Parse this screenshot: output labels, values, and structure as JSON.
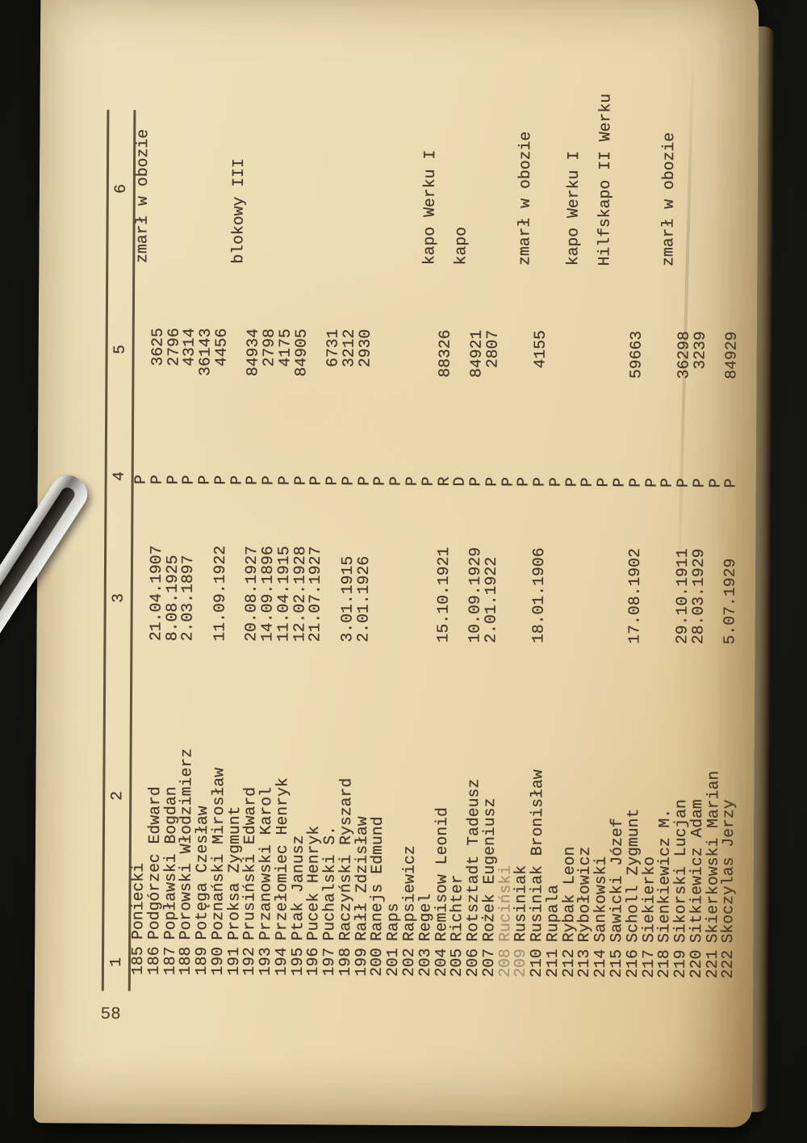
{
  "page": {
    "number": "58",
    "column_headers": [
      "1",
      "2",
      "3",
      "4",
      "5",
      "6"
    ]
  },
  "colors": {
    "paper": "#ecdab2",
    "ink": "#46392a",
    "background": "#171714",
    "page_edge": "#d9c393",
    "clip_metal": "#c9c9c5"
  },
  "records": [
    {
      "nr": "185",
      "name": "Poniecki",
      "birthdate": "",
      "nat": "P",
      "camp_number": "",
      "remark": "zmarł w obozie"
    },
    {
      "nr": "186",
      "name": "Podgórzec Edward",
      "birthdate": "21.04.1907",
      "nat": "P",
      "camp_number": "3625",
      "remark": ""
    },
    {
      "nr": "187",
      "name": "Popławski Bogdan",
      "birthdate": "8.08.1925",
      "nat": "P",
      "camp_number": "2796",
      "remark": ""
    },
    {
      "nr": "188",
      "name": "Porowski Włodzimierz",
      "birthdate": "2.03.1897",
      "nat": "P",
      "camp_number": "4314",
      "remark": ""
    },
    {
      "nr": "189",
      "name": "Potęga Czesław",
      "birthdate": "",
      "nat": "P",
      "camp_number": "36143",
      "remark": ""
    },
    {
      "nr": "190",
      "name": "Poznański Mirosław",
      "birthdate": "11.09.1922",
      "nat": "P",
      "camp_number": "4456",
      "remark": ""
    },
    {
      "nr": "191",
      "name": "Proksa Zygmunt",
      "birthdate": "",
      "nat": "P",
      "camp_number": "",
      "remark": "blokowy III"
    },
    {
      "nr": "192",
      "name": "Prusiński Edward",
      "birthdate": "20.08.1927",
      "nat": "P",
      "camp_number": "84934",
      "remark": ""
    },
    {
      "nr": "193",
      "name": "Przanowski Karol",
      "birthdate": "14.09.1896",
      "nat": "P",
      "camp_number": "2798",
      "remark": ""
    },
    {
      "nr": "194",
      "name": "Przełomiec Henryk",
      "birthdate": "11.04.1915",
      "nat": "P",
      "camp_number": "4175",
      "remark": ""
    },
    {
      "nr": "195",
      "name": "Ptak Janusz",
      "birthdate": "12.02.1928",
      "nat": "P",
      "camp_number": "84905",
      "remark": ""
    },
    {
      "nr": "196",
      "name": "Pucek Henryk",
      "birthdate": "21.07.1927",
      "nat": "P",
      "camp_number": "",
      "remark": ""
    },
    {
      "nr": "197",
      "name": "Puchalski S.",
      "birthdate": "",
      "nat": "P",
      "camp_number": "6731",
      "remark": ""
    },
    {
      "nr": "198",
      "name": "Raczyński Ryszard",
      "birthdate": "3.01.1915",
      "nat": "P",
      "camp_number": "3212",
      "remark": ""
    },
    {
      "nr": "199",
      "name": "Rałł Zdzisław",
      "birthdate": "2.01.1926",
      "nat": "P",
      "camp_number": "2930",
      "remark": ""
    },
    {
      "nr": "200",
      "name": "Ranejs Edmund",
      "birthdate": "",
      "nat": "P",
      "camp_number": "",
      "remark": ""
    },
    {
      "nr": "201",
      "name": "Raps",
      "birthdate": "",
      "nat": "P",
      "camp_number": "",
      "remark": ""
    },
    {
      "nr": "202",
      "name": "Rapsiewicz",
      "birthdate": "",
      "nat": "P",
      "camp_number": "",
      "remark": ""
    },
    {
      "nr": "203",
      "name": "Regel",
      "birthdate": "",
      "nat": "P",
      "camp_number": "",
      "remark": "kapo Werku I"
    },
    {
      "nr": "204",
      "name": "Remisow Leonid",
      "birthdate": "15.10.1921",
      "nat": "R",
      "camp_number": "88326",
      "remark": ""
    },
    {
      "nr": "205",
      "name": "Richter",
      "birthdate": "",
      "nat": "D",
      "camp_number": "",
      "remark": "kapo"
    },
    {
      "nr": "206",
      "name": "Rotsztadt Tadeusz",
      "birthdate": "10.09.1929",
      "nat": "P",
      "camp_number": "84921",
      "remark": ""
    },
    {
      "nr": "207",
      "name": "Rożek Eugeniusz",
      "birthdate": "2.01.1922",
      "nat": "P",
      "camp_number": "2807",
      "remark": ""
    },
    {
      "nr": "208",
      "name": "Ruciński",
      "birthdate": "",
      "nat": "P",
      "camp_number": "",
      "remark": "",
      "faint_nr": true,
      "faint_name": true
    },
    {
      "nr": "209",
      "name": "Rusiniak",
      "birthdate": "",
      "nat": "P",
      "camp_number": "",
      "remark": "zmarł w obozie",
      "faint_nr": true
    },
    {
      "nr": "210",
      "name": "Rusiniak Bronisław",
      "birthdate": "18.01.1906",
      "nat": "P",
      "camp_number": "4155",
      "remark": ""
    },
    {
      "nr": "211",
      "name": "Rupala",
      "birthdate": "",
      "nat": "P",
      "camp_number": "",
      "remark": ""
    },
    {
      "nr": "212",
      "name": "Rybak Leon",
      "birthdate": "",
      "nat": "P",
      "camp_number": "",
      "remark": "kapo Werku I"
    },
    {
      "nr": "213",
      "name": "Rybołowicz",
      "birthdate": "",
      "nat": "P",
      "camp_number": "",
      "remark": ""
    },
    {
      "nr": "214",
      "name": "Sankowski",
      "birthdate": "",
      "nat": "P",
      "camp_number": "",
      "remark": "Hilfskapo II Werku"
    },
    {
      "nr": "215",
      "name": "Sawicki Józef",
      "birthdate": "",
      "nat": "P",
      "camp_number": "",
      "remark": ""
    },
    {
      "nr": "216",
      "name": "Scholl Zygmunt",
      "birthdate": "17.08.1902",
      "nat": "P",
      "camp_number": "59663",
      "remark": ""
    },
    {
      "nr": "217",
      "name": "Siekierko",
      "birthdate": "",
      "nat": "P",
      "camp_number": "",
      "remark": ""
    },
    {
      "nr": "218",
      "name": "Sienkiewicz M.",
      "birthdate": "",
      "nat": "P",
      "camp_number": "",
      "remark": "zmarł w obozie"
    },
    {
      "nr": "219",
      "name": "Sikorski Lucjan",
      "birthdate": "29.10.1911",
      "nat": "P",
      "camp_number": "36298",
      "remark": ""
    },
    {
      "nr": "220",
      "name": "Sitkiewicz Adam",
      "birthdate": "28.03.1929",
      "nat": "P",
      "camp_number": "3239",
      "remark": ""
    },
    {
      "nr": "221",
      "name": "Skierkowski Marian",
      "birthdate": "",
      "nat": "P",
      "camp_number": "",
      "remark": ""
    },
    {
      "nr": "222",
      "name": "Skoczylas Jerzy",
      "birthdate": "5.07.1929",
      "nat": "P",
      "camp_number": "84929",
      "remark": ""
    }
  ]
}
